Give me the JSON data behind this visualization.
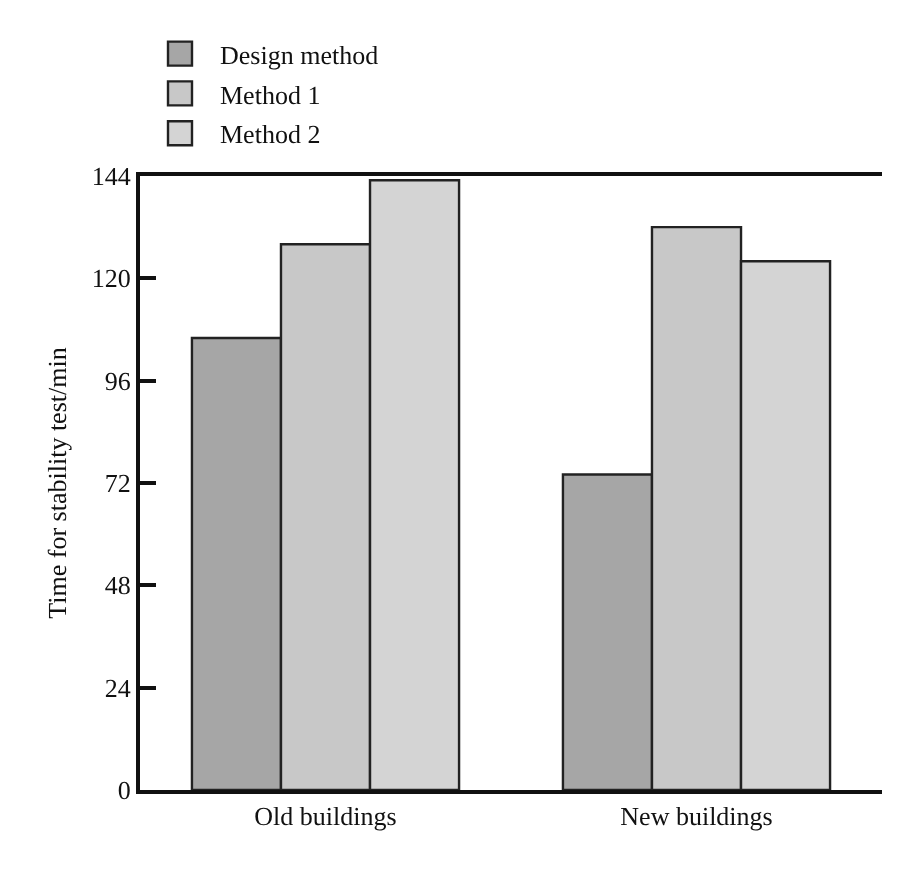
{
  "chart_data": {
    "type": "bar",
    "ylabel": "Time for stability test/min",
    "categories": [
      "Old buildings",
      "New buildings"
    ],
    "series": [
      {
        "name": "Design method",
        "color": "#a6a6a6",
        "values": [
          106,
          74
        ]
      },
      {
        "name": "Method 1",
        "color": "#c8c8c8",
        "values": [
          128,
          132
        ]
      },
      {
        "name": "Method 2",
        "color": "#d4d4d4",
        "values": [
          143,
          124
        ]
      }
    ],
    "ylim": [
      0,
      144
    ],
    "yticks": [
      0,
      24,
      48,
      72,
      96,
      120,
      144
    ],
    "grid": false,
    "legend": "top left"
  }
}
